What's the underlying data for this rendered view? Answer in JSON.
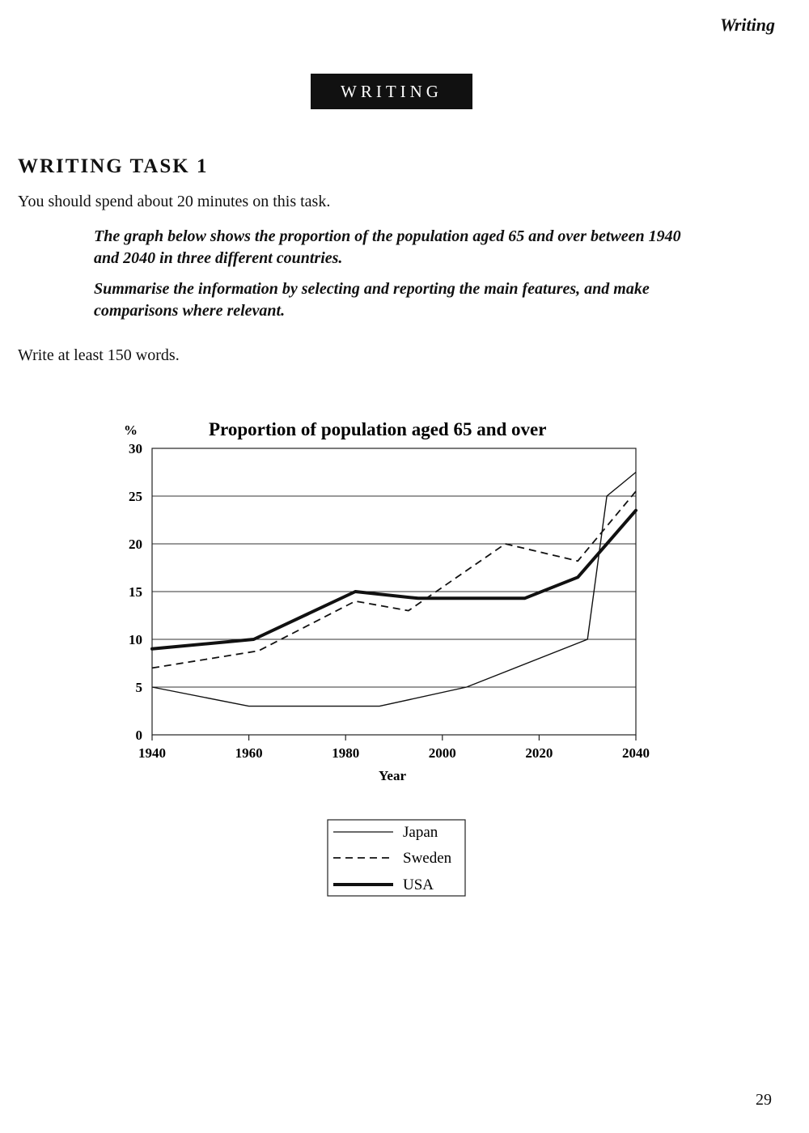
{
  "page": {
    "running_head": "Writing",
    "section_banner": "WRITING",
    "task_title": "WRITING TASK 1",
    "time_note": "You should spend about 20 minutes on this task.",
    "prompt": [
      "The graph below shows the proportion of the population aged 65 and over between 1940 and 2040 in three different countries.",
      "Summarise the information by selecting and reporting the main features, and make comparisons where relevant."
    ],
    "word_count_note": "Write at least 150 words.",
    "page_number": "29"
  },
  "chart_data": {
    "type": "line",
    "title": "Proportion of population aged 65 and over",
    "xlabel": "Year",
    "ylabel": "%",
    "xlim": [
      1940,
      2040
    ],
    "ylim": [
      0,
      30
    ],
    "x_ticks": [
      1940,
      1960,
      1980,
      2000,
      2020,
      2040
    ],
    "y_ticks": [
      0,
      5,
      10,
      15,
      20,
      25,
      30
    ],
    "grid": "horizontal",
    "legend_position": "bottom-center",
    "series": [
      {
        "name": "Japan",
        "style": "thin-solid",
        "points": [
          [
            1940,
            5
          ],
          [
            1960,
            3
          ],
          [
            1980,
            3
          ],
          [
            1987,
            3
          ],
          [
            2005,
            5
          ],
          [
            2030,
            10
          ],
          [
            2034,
            25
          ],
          [
            2040,
            27.5
          ]
        ]
      },
      {
        "name": "Sweden",
        "style": "dashed",
        "points": [
          [
            1940,
            7
          ],
          [
            1962,
            8.8
          ],
          [
            1982,
            14
          ],
          [
            1993,
            13
          ],
          [
            2013,
            20
          ],
          [
            2028,
            18.2
          ],
          [
            2040,
            25.5
          ]
        ]
      },
      {
        "name": "USA",
        "style": "thick-solid",
        "points": [
          [
            1940,
            9
          ],
          [
            1961,
            10
          ],
          [
            1982,
            15
          ],
          [
            1995,
            14.3
          ],
          [
            2017,
            14.3
          ],
          [
            2028,
            16.5
          ],
          [
            2040,
            23.5
          ]
        ]
      }
    ]
  }
}
